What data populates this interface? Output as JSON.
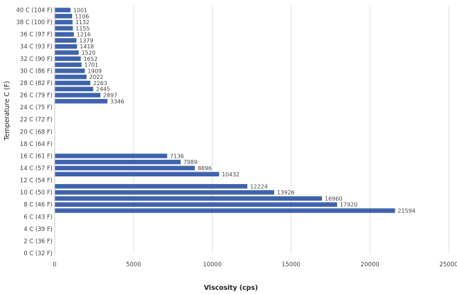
{
  "chart_data": {
    "type": "bar",
    "orientation": "horizontal",
    "xlabel": "Viscosity (cps)",
    "ylabel": "Temperature C (F)",
    "xlim": [
      0,
      25000
    ],
    "x_ticks": [
      0,
      5000,
      10000,
      15000,
      20000,
      25000
    ],
    "x_tick_labels": [
      "0",
      "5000",
      "10000",
      "15000",
      "20000",
      "25000"
    ],
    "grid": "vertical",
    "bar_color": "#3f63ad",
    "y_ticks": [
      {
        "temp": 0,
        "label": "0 C  (32 F)"
      },
      {
        "temp": 2,
        "label": "2 C  (36 F)"
      },
      {
        "temp": 4,
        "label": "4 C (39 F)"
      },
      {
        "temp": 6,
        "label": "6 C (43 F)"
      },
      {
        "temp": 8,
        "label": "8 C (46 F)"
      },
      {
        "temp": 10,
        "label": "10 C (50 F)"
      },
      {
        "temp": 12,
        "label": "12 C (54 F)"
      },
      {
        "temp": 14,
        "label": "14 C (57 F)"
      },
      {
        "temp": 16,
        "label": "16 C (61 F)"
      },
      {
        "temp": 18,
        "label": "18 C (64 F)"
      },
      {
        "temp": 20,
        "label": "20 C (68 F)"
      },
      {
        "temp": 22,
        "label": "22 C (72 F)"
      },
      {
        "temp": 24,
        "label": "24 C (75 F)"
      },
      {
        "temp": 26,
        "label": "26 C (79 F)"
      },
      {
        "temp": 28,
        "label": "28 C (82 F)"
      },
      {
        "temp": 30,
        "label": "30 C (86 F)"
      },
      {
        "temp": 32,
        "label": "32 C (90 F)"
      },
      {
        "temp": 34,
        "label": "34 C (93 F)"
      },
      {
        "temp": 36,
        "label": "36 C (97 F)"
      },
      {
        "temp": 38,
        "label": "38 C (100 F)"
      },
      {
        "temp": 40,
        "label": "40 C (104 F)"
      }
    ],
    "bars": [
      {
        "temp": 7,
        "value": 21594
      },
      {
        "temp": 8,
        "value": 17920
      },
      {
        "temp": 9,
        "value": 16960
      },
      {
        "temp": 10,
        "value": 13926
      },
      {
        "temp": 11,
        "value": 12224
      },
      {
        "temp": 13,
        "value": 10432
      },
      {
        "temp": 14,
        "value": 8896
      },
      {
        "temp": 15,
        "value": 7989
      },
      {
        "temp": 16,
        "value": 7136
      },
      {
        "temp": 25,
        "value": 3346
      },
      {
        "temp": 26,
        "value": 2897
      },
      {
        "temp": 27,
        "value": 2445
      },
      {
        "temp": 28,
        "value": 2263
      },
      {
        "temp": 29,
        "value": 2022
      },
      {
        "temp": 30,
        "value": 1909
      },
      {
        "temp": 31,
        "value": 1701
      },
      {
        "temp": 32,
        "value": 1652
      },
      {
        "temp": 33,
        "value": 1520
      },
      {
        "temp": 34,
        "value": 1418
      },
      {
        "temp": 35,
        "value": 1379
      },
      {
        "temp": 36,
        "value": 1216
      },
      {
        "temp": 37,
        "value": 1155
      },
      {
        "temp": 38,
        "value": 1132
      },
      {
        "temp": 39,
        "value": 1106
      },
      {
        "temp": 40,
        "value": 1001
      }
    ]
  }
}
